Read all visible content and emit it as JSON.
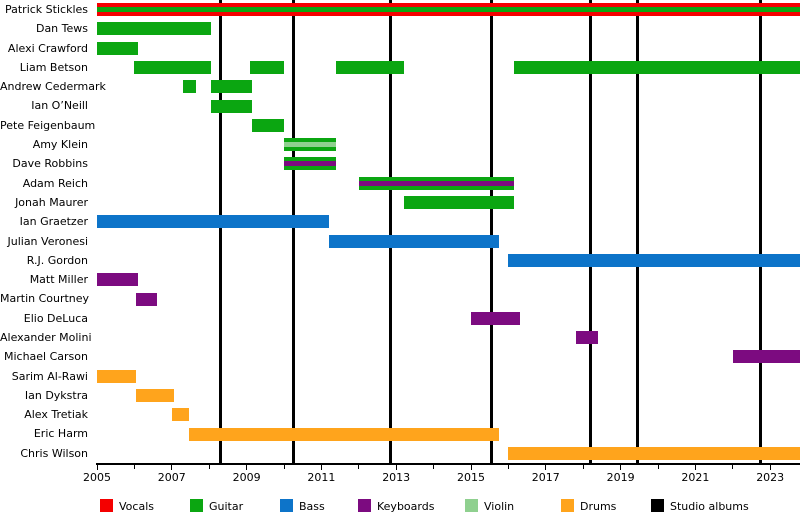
{
  "chart_data": {
    "type": "timeline",
    "title": "",
    "x_axis": {
      "start": 2005.0,
      "end": 2023.8,
      "labeled_ticks": [
        2005,
        2007,
        2009,
        2011,
        2013,
        2015,
        2017,
        2019,
        2021,
        2023
      ],
      "minor_tick_every_years": 1,
      "grid": false
    },
    "colors": {
      "vocals": "#f40000",
      "guitar": "#0ba611",
      "bass": "#0d74c9",
      "keyboards": "#7c0b80",
      "violin": "#8fd08f",
      "drums": "#ffa41c",
      "albums": "#000000"
    },
    "studio_album_lines": [
      2008.3,
      2010.25,
      2012.85,
      2015.55,
      2018.2,
      2019.45,
      2022.75
    ],
    "members": [
      {
        "name": "Patrick Stickles",
        "segments": [
          {
            "start": 2005.0,
            "end": 2023.8,
            "role": "vocals",
            "stripe": "guitar"
          }
        ]
      },
      {
        "name": "Dan Tews",
        "segments": [
          {
            "start": 2005.0,
            "end": 2008.05,
            "role": "guitar"
          }
        ]
      },
      {
        "name": "Alexi Crawford",
        "segments": [
          {
            "start": 2005.0,
            "end": 2006.1,
            "role": "guitar"
          }
        ]
      },
      {
        "name": "Liam Betson",
        "segments": [
          {
            "start": 2006.0,
            "end": 2008.05,
            "role": "guitar"
          },
          {
            "start": 2009.1,
            "end": 2010.0,
            "role": "guitar"
          },
          {
            "start": 2011.4,
            "end": 2013.2,
            "role": "guitar"
          },
          {
            "start": 2016.15,
            "end": 2023.8,
            "role": "guitar"
          }
        ]
      },
      {
        "name": "Andrew Cedermark",
        "segments": [
          {
            "start": 2007.3,
            "end": 2007.65,
            "role": "guitar"
          },
          {
            "start": 2008.05,
            "end": 2009.15,
            "role": "guitar"
          }
        ]
      },
      {
        "name": "Ian O’Neill",
        "segments": [
          {
            "start": 2008.05,
            "end": 2009.15,
            "role": "guitar"
          }
        ]
      },
      {
        "name": "Pete Feigenbaum",
        "segments": [
          {
            "start": 2009.15,
            "end": 2010.0,
            "role": "guitar"
          }
        ]
      },
      {
        "name": "Amy Klein",
        "segments": [
          {
            "start": 2010.0,
            "end": 2011.4,
            "role": "guitar",
            "stripe": "violin"
          }
        ]
      },
      {
        "name": "Dave Robbins",
        "segments": [
          {
            "start": 2010.0,
            "end": 2011.4,
            "role": "guitar",
            "stripe": "keyboards"
          }
        ]
      },
      {
        "name": "Adam Reich",
        "segments": [
          {
            "start": 2012.0,
            "end": 2016.15,
            "role": "guitar",
            "stripe": "keyboards"
          }
        ]
      },
      {
        "name": "Jonah Maurer",
        "segments": [
          {
            "start": 2013.2,
            "end": 2016.15,
            "role": "guitar"
          }
        ]
      },
      {
        "name": "Ian Graetzer",
        "segments": [
          {
            "start": 2005.0,
            "end": 2011.2,
            "role": "bass"
          }
        ]
      },
      {
        "name": "Julian Veronesi",
        "segments": [
          {
            "start": 2011.2,
            "end": 2015.75,
            "role": "bass"
          }
        ]
      },
      {
        "name": "R.J. Gordon",
        "segments": [
          {
            "start": 2016.0,
            "end": 2023.8,
            "role": "bass"
          }
        ]
      },
      {
        "name": "Matt Miller",
        "segments": [
          {
            "start": 2005.0,
            "end": 2006.1,
            "role": "keyboards"
          }
        ]
      },
      {
        "name": "Martin Courtney",
        "segments": [
          {
            "start": 2006.05,
            "end": 2006.6,
            "role": "keyboards"
          }
        ]
      },
      {
        "name": "Elio DeLuca",
        "segments": [
          {
            "start": 2015.0,
            "end": 2016.3,
            "role": "keyboards"
          }
        ]
      },
      {
        "name": "Alexander Molini",
        "segments": [
          {
            "start": 2017.8,
            "end": 2018.4,
            "role": "keyboards"
          }
        ]
      },
      {
        "name": "Michael Carson",
        "segments": [
          {
            "start": 2022.0,
            "end": 2023.8,
            "role": "keyboards"
          }
        ]
      },
      {
        "name": "Sarim Al-Rawi",
        "segments": [
          {
            "start": 2005.0,
            "end": 2006.05,
            "role": "drums"
          }
        ]
      },
      {
        "name": "Ian Dykstra",
        "segments": [
          {
            "start": 2006.05,
            "end": 2007.05,
            "role": "drums"
          }
        ]
      },
      {
        "name": "Alex Tretiak",
        "segments": [
          {
            "start": 2007.0,
            "end": 2007.45,
            "role": "drums"
          }
        ]
      },
      {
        "name": "Eric Harm",
        "segments": [
          {
            "start": 2007.45,
            "end": 2015.75,
            "role": "drums"
          }
        ]
      },
      {
        "name": "Chris Wilson",
        "segments": [
          {
            "start": 2016.0,
            "end": 2023.8,
            "role": "drums"
          }
        ]
      }
    ],
    "legend": [
      {
        "label": "Vocals",
        "role": "vocals"
      },
      {
        "label": "Guitar",
        "role": "guitar"
      },
      {
        "label": "Bass",
        "role": "bass"
      },
      {
        "label": "Keyboards",
        "role": "keyboards"
      },
      {
        "label": "Violin",
        "role": "violin"
      },
      {
        "label": "Drums",
        "role": "drums"
      },
      {
        "label": "Studio albums",
        "role": "albums"
      }
    ]
  }
}
